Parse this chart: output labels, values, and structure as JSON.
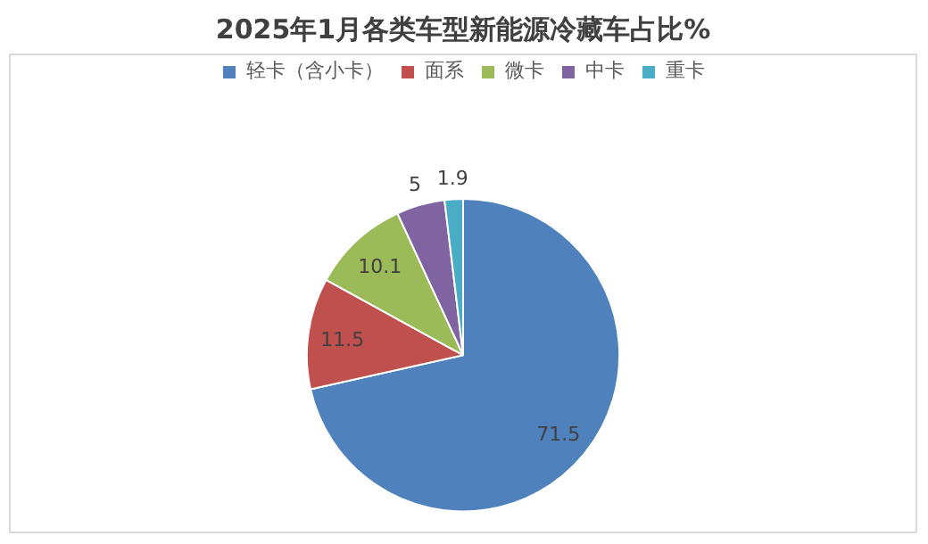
{
  "chart_data": {
    "type": "pie",
    "title": "2025年1月各类车型新能源冷藏车占比%",
    "categories": [
      "轻卡（含小卡）",
      "面系",
      "微卡",
      "中卡",
      "重卡"
    ],
    "values": [
      71.5,
      11.5,
      10.1,
      5,
      1.9
    ],
    "colors": [
      "#4f81bd",
      "#c0504d",
      "#9bbb59",
      "#8064a2",
      "#4bacc6"
    ],
    "data_labels": true,
    "legend": "top"
  }
}
